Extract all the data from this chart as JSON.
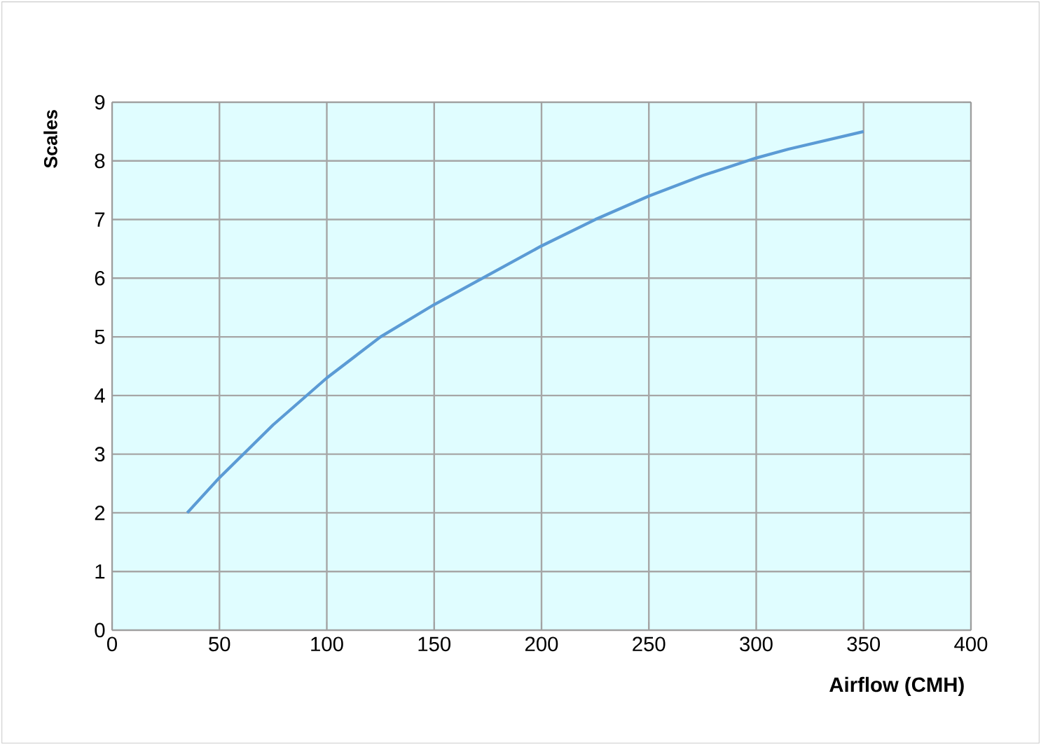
{
  "chart_data": {
    "type": "line",
    "xlabel": "Airflow (CMH)",
    "ylabel": "Scales",
    "x": [
      35,
      50,
      75,
      100,
      125,
      150,
      175,
      200,
      225,
      250,
      275,
      300,
      315,
      350
    ],
    "series": [
      {
        "color": "#5b9bd5",
        "values": [
          2,
          2.6,
          3.5,
          4.3,
          5.0,
          5.55,
          6.05,
          6.55,
          7.0,
          7.4,
          7.75,
          8.05,
          8.2,
          8.5
        ]
      }
    ],
    "xlim": [
      0,
      400
    ],
    "ylim": [
      0,
      9
    ],
    "xticks": [
      0,
      50,
      100,
      150,
      200,
      250,
      300,
      350,
      400
    ],
    "yticks": [
      0,
      1,
      2,
      3,
      4,
      5,
      6,
      7,
      8,
      9
    ],
    "grid": true,
    "marker": "none",
    "line_style": "solid"
  }
}
